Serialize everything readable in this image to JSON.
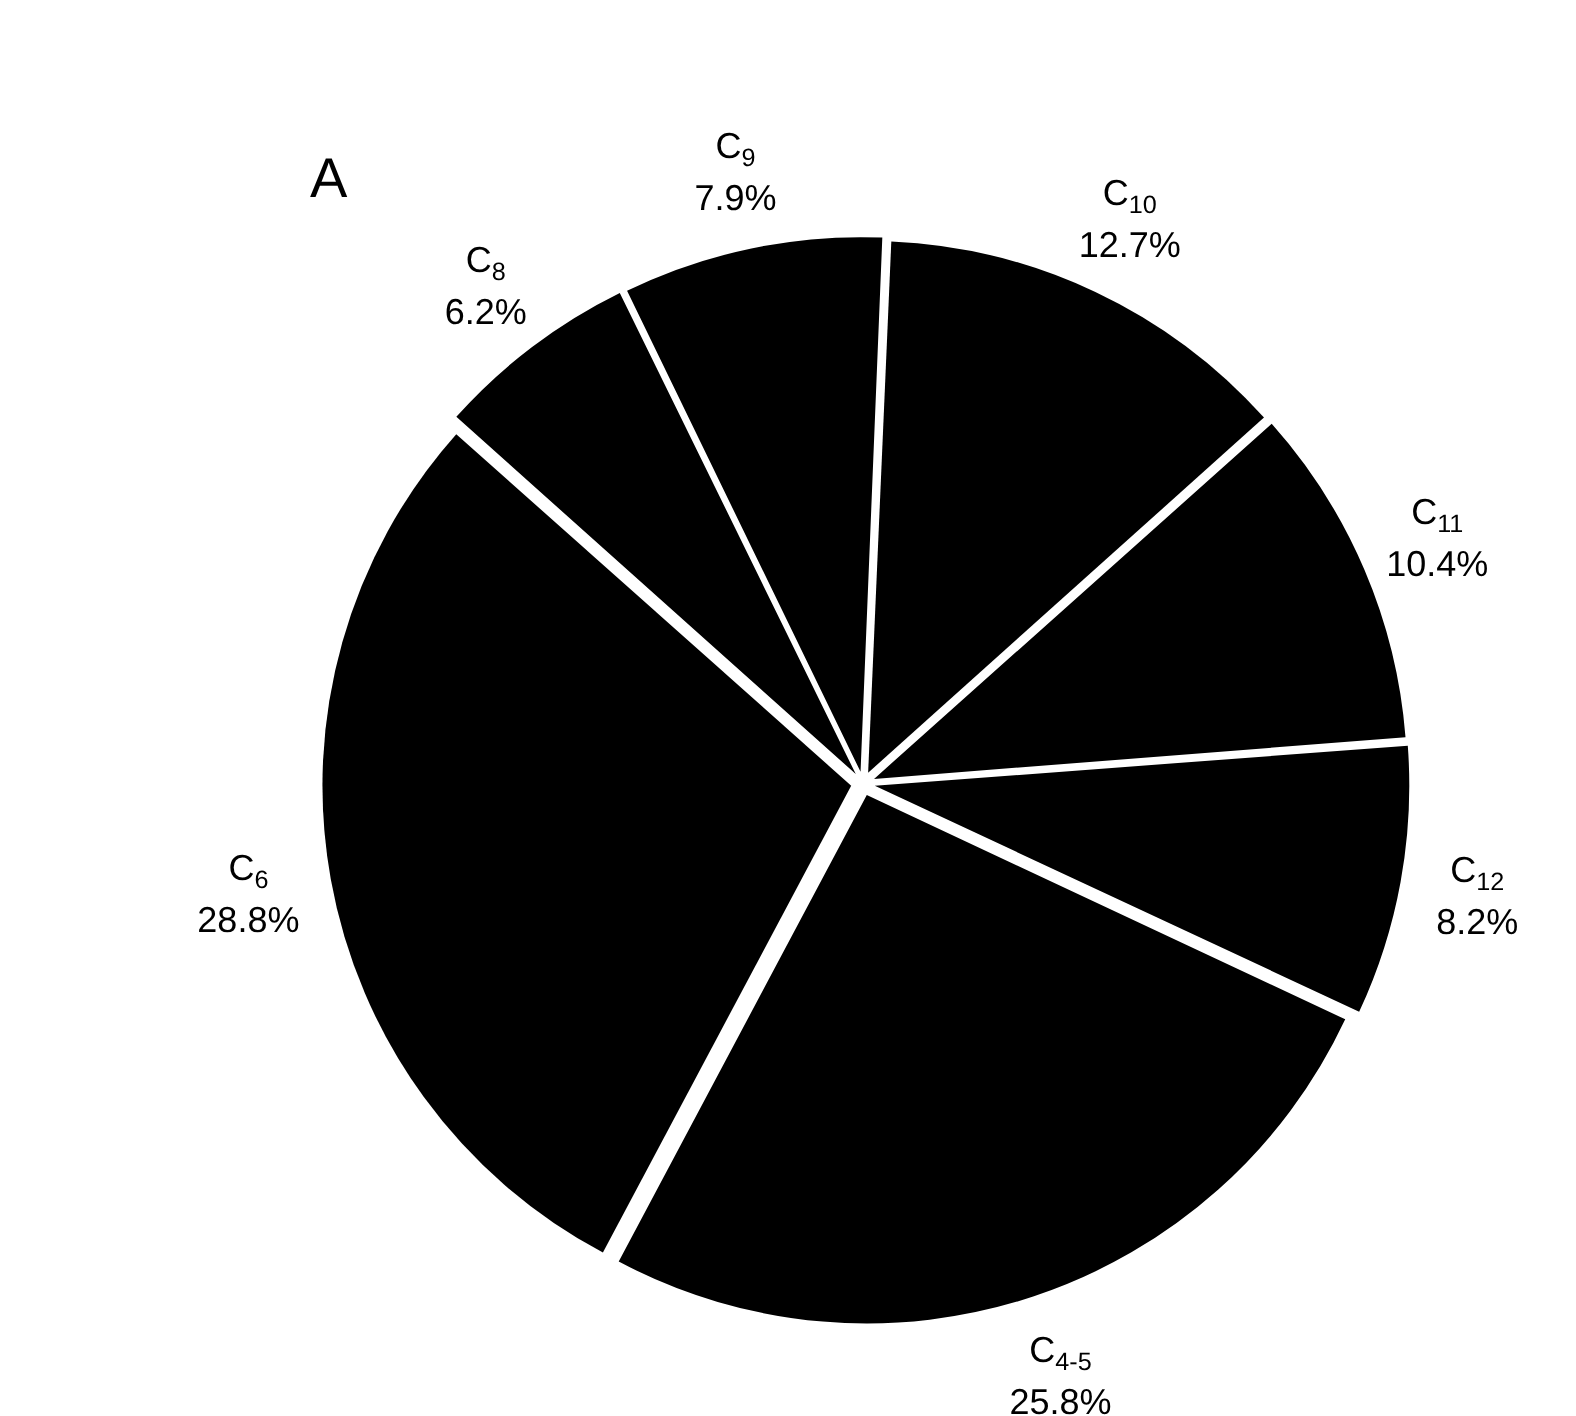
{
  "chart_data": {
    "type": "pie",
    "title": "A",
    "categories": [
      "C$_{9}$",
      "C$_{10}$",
      "C$_{11}$",
      "C$_{12}$",
      "C$_{4-5}$",
      "C$_{6}$",
      "C$_{8}$"
    ],
    "values": [
      7.9,
      12.7,
      10.4,
      8.2,
      25.8,
      28.8,
      6.2
    ],
    "value_labels": [
      "7.9%",
      "12.7%",
      "10.4%",
      "8.2%",
      "25.8%",
      "28.8%",
      "6.2%"
    ],
    "colors": [
      "#000000",
      "#000000",
      "#000000",
      "#000000",
      "#000000",
      "#000000",
      "#000000"
    ],
    "legend": false
  }
}
